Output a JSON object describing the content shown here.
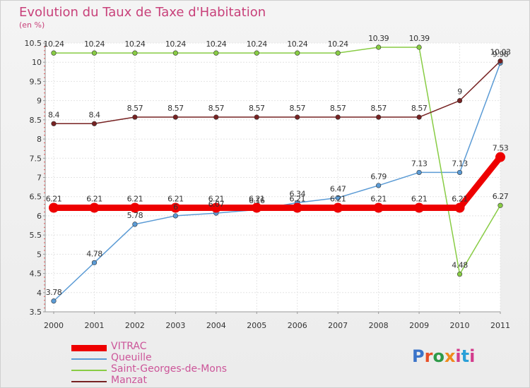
{
  "chart": {
    "title": "Evolution du Taux de Taxe d'Habitation",
    "subtitle": "(en %)"
  },
  "logo_text": "Proxiti",
  "chart_data": {
    "type": "line",
    "title": "Evolution du Taux de Taxe d'Habitation",
    "subtitle": "(en %)",
    "categories": [
      "2000",
      "2001",
      "2002",
      "2003",
      "2004",
      "2005",
      "2006",
      "2007",
      "2008",
      "2009",
      "2010",
      "2011"
    ],
    "ylim": [
      3.5,
      10.5
    ],
    "yticks": [
      3.5,
      4,
      4.5,
      5,
      5.5,
      6,
      6.5,
      7,
      7.5,
      8,
      8.5,
      9,
      9.5,
      10,
      10.5
    ],
    "ytick_labels": [
      "3.5",
      "4",
      "4.5",
      "5",
      "5.5",
      "6",
      "6.5",
      "7",
      "7.5",
      "8",
      "8.5",
      "9",
      "9.5",
      "10",
      "10.5"
    ],
    "grid": true,
    "legend_position": "bottom-left",
    "series": [
      {
        "name": "VITRAC",
        "color": "#ee0000",
        "values": [
          6.21,
          6.21,
          6.21,
          6.21,
          6.21,
          6.21,
          6.21,
          6.21,
          6.21,
          6.21,
          6.21,
          7.53
        ],
        "labels": [
          "6.21",
          "6.21",
          "6.21",
          "6.21",
          "6.21",
          "6.21",
          "6.21",
          "6.21",
          "6.21",
          "6.21",
          "6.21",
          "7.53"
        ]
      },
      {
        "name": "Queuille",
        "color": "#5b9bd5",
        "values": [
          3.78,
          4.78,
          5.78,
          6.0,
          6.07,
          6.16,
          6.34,
          6.47,
          6.79,
          7.13,
          7.13,
          9.98
        ],
        "labels": [
          "3.78",
          "4.78",
          "5.78",
          "6",
          "6.07",
          "6.16",
          "6.34",
          "6.47",
          "6.79",
          "7.13",
          "7.13",
          "9.98"
        ]
      },
      {
        "name": "Saint-Georges-de-Mons",
        "color": "#88cc44",
        "values": [
          10.24,
          10.24,
          10.24,
          10.24,
          10.24,
          10.24,
          10.24,
          10.24,
          10.39,
          10.39,
          4.48,
          6.27
        ],
        "labels": [
          "10.24",
          "10.24",
          "10.24",
          "10.24",
          "10.24",
          "10.24",
          "10.24",
          "10.24",
          "10.39",
          "10.39",
          "4.48",
          "6.27"
        ]
      },
      {
        "name": "Manzat",
        "color": "#772222",
        "values": [
          8.4,
          8.4,
          8.57,
          8.57,
          8.57,
          8.57,
          8.57,
          8.57,
          8.57,
          8.57,
          9.0,
          10.03
        ],
        "labels": [
          "8.4",
          "8.4",
          "8.57",
          "8.57",
          "8.57",
          "8.57",
          "8.57",
          "8.57",
          "8.57",
          "8.57",
          "9",
          "10.03"
        ]
      }
    ]
  }
}
